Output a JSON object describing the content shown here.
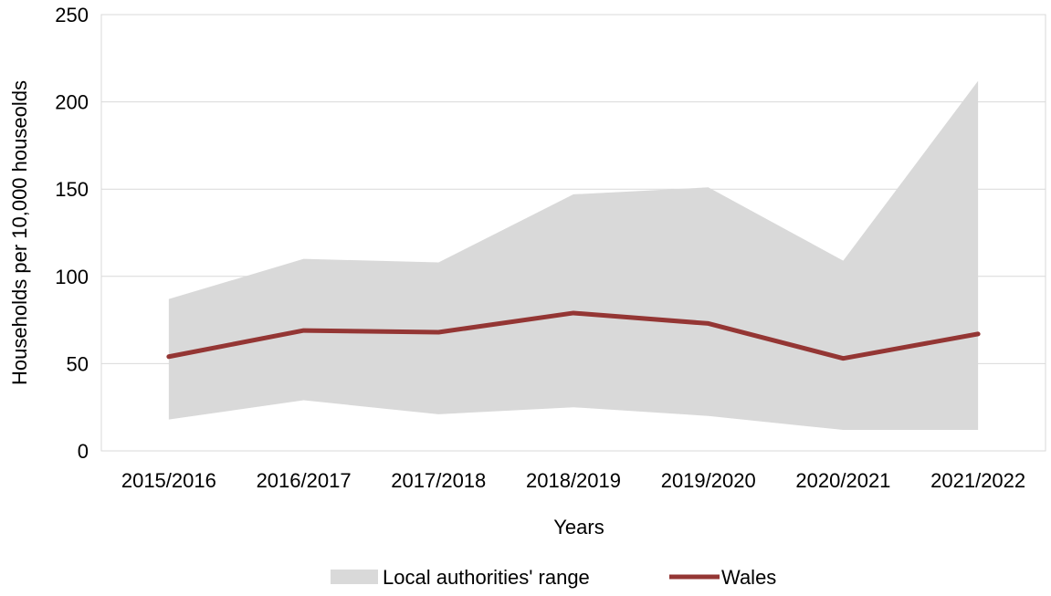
{
  "chart_data": {
    "type": "area",
    "title": "",
    "xlabel": "Years",
    "ylabel": "Households per 10,000 houseolds",
    "categories": [
      "2015/2016",
      "2016/2017",
      "2017/2018",
      "2018/2019",
      "2019/2020",
      "2020/2021",
      "2021/2022"
    ],
    "ylim": [
      0,
      250
    ],
    "yticks": [
      "0",
      "50",
      "100",
      "150",
      "200",
      "250"
    ],
    "grid": true,
    "legend_position": "bottom",
    "series": [
      {
        "name": "Local authorities' range",
        "kind": "range-area",
        "color": "#d9d9d9",
        "low": [
          18,
          29,
          21,
          25,
          20,
          12,
          12
        ],
        "high": [
          87,
          110,
          108,
          147,
          151,
          109,
          212
        ]
      },
      {
        "name": "Wales",
        "kind": "line",
        "color": "#943634",
        "values": [
          54,
          69,
          68,
          79,
          73,
          53,
          67
        ]
      }
    ]
  }
}
